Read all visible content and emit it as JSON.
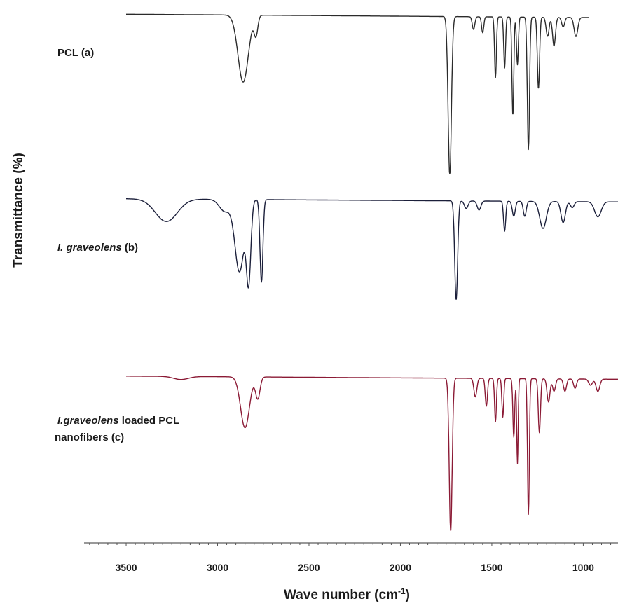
{
  "chart_data": {
    "type": "line",
    "title": "",
    "xlabel": "Wave number (cm",
    "xlabel_sup": "-1",
    "xlabel_close": ")",
    "ylabel": "Transmittance (%)",
    "xlim": [
      3730,
      810
    ],
    "x_reversed": true,
    "x_ticks": [
      3500,
      3000,
      2500,
      2000,
      1500,
      1000
    ],
    "x_tick_labels": [
      "3500",
      "3000",
      "2500",
      "2000",
      "1500",
      "1000"
    ],
    "y_tick_labels": false,
    "grid": false,
    "stacked_offset": true,
    "series": [
      {
        "name": "PCL (a)",
        "label_parts": [
          {
            "text": "PCL (a)",
            "italic": false
          }
        ],
        "color": "#2b2b2b",
        "x_range": [
          3500,
          970
        ],
        "top": 0.985,
        "bottom": 0.0,
        "baseline": 0.965,
        "peaks": [
          {
            "x": 2860,
            "depth": 0.42,
            "width": 28
          },
          {
            "x": 2790,
            "depth": 0.12,
            "width": 10
          },
          {
            "x": 1730,
            "depth": 1.0,
            "width": 9
          },
          {
            "x": 1600,
            "depth": 0.08,
            "width": 7
          },
          {
            "x": 1550,
            "depth": 0.1,
            "width": 6
          },
          {
            "x": 1480,
            "depth": 0.38,
            "width": 5
          },
          {
            "x": 1430,
            "depth": 0.32,
            "width": 5
          },
          {
            "x": 1385,
            "depth": 0.62,
            "width": 5
          },
          {
            "x": 1360,
            "depth": 0.3,
            "width": 5
          },
          {
            "x": 1300,
            "depth": 0.83,
            "width": 6
          },
          {
            "x": 1245,
            "depth": 0.45,
            "width": 6
          },
          {
            "x": 1195,
            "depth": 0.12,
            "width": 8
          },
          {
            "x": 1160,
            "depth": 0.18,
            "width": 8
          },
          {
            "x": 1110,
            "depth": 0.06,
            "width": 8
          },
          {
            "x": 1040,
            "depth": 0.12,
            "width": 10
          }
        ]
      },
      {
        "name": "I. graveolens (b)",
        "label_parts": [
          {
            "text": "I. graveolens",
            "italic": true
          },
          {
            "text": " (b)",
            "italic": false
          }
        ],
        "color": "#1b1f3a",
        "x_range": [
          3500,
          810
        ],
        "top": 0.985,
        "bottom": 0.0,
        "baseline": 0.94,
        "peaks": [
          {
            "x": 3280,
            "depth": 0.15,
            "width": 60
          },
          {
            "x": 2960,
            "depth": 0.08,
            "width": 30
          },
          {
            "x": 2880,
            "depth": 0.48,
            "width": 25
          },
          {
            "x": 2830,
            "depth": 0.52,
            "width": 12
          },
          {
            "x": 2760,
            "depth": 0.55,
            "width": 8
          },
          {
            "x": 1695,
            "depth": 0.66,
            "width": 8
          },
          {
            "x": 1640,
            "depth": 0.05,
            "width": 10
          },
          {
            "x": 1570,
            "depth": 0.06,
            "width": 10
          },
          {
            "x": 1430,
            "depth": 0.2,
            "width": 6
          },
          {
            "x": 1380,
            "depth": 0.1,
            "width": 8
          },
          {
            "x": 1320,
            "depth": 0.1,
            "width": 8
          },
          {
            "x": 1220,
            "depth": 0.18,
            "width": 18
          },
          {
            "x": 1110,
            "depth": 0.14,
            "width": 12
          },
          {
            "x": 1060,
            "depth": 0.04,
            "width": 10
          },
          {
            "x": 920,
            "depth": 0.1,
            "width": 18
          }
        ]
      },
      {
        "name": "I.graveolens loaded PCL nanofibers (c)",
        "label_parts": [
          {
            "text": "I.graveolens",
            "italic": true
          },
          {
            "text": " loaded PCL",
            "italic": false
          }
        ],
        "label_line2": "nanofibers (c)",
        "color": "#8b1a35",
        "x_range": [
          3500,
          810
        ],
        "top": 0.985,
        "bottom": 0.0,
        "baseline": 0.97,
        "peaks": [
          {
            "x": 3200,
            "depth": 0.02,
            "width": 40
          },
          {
            "x": 2850,
            "depth": 0.33,
            "width": 24
          },
          {
            "x": 2780,
            "depth": 0.14,
            "width": 12
          },
          {
            "x": 1725,
            "depth": 1.0,
            "width": 8
          },
          {
            "x": 1590,
            "depth": 0.12,
            "width": 8
          },
          {
            "x": 1530,
            "depth": 0.18,
            "width": 6
          },
          {
            "x": 1480,
            "depth": 0.28,
            "width": 5
          },
          {
            "x": 1440,
            "depth": 0.25,
            "width": 5
          },
          {
            "x": 1380,
            "depth": 0.38,
            "width": 5
          },
          {
            "x": 1360,
            "depth": 0.55,
            "width": 4
          },
          {
            "x": 1300,
            "depth": 0.88,
            "width": 5
          },
          {
            "x": 1240,
            "depth": 0.35,
            "width": 6
          },
          {
            "x": 1190,
            "depth": 0.15,
            "width": 8
          },
          {
            "x": 1160,
            "depth": 0.08,
            "width": 8
          },
          {
            "x": 1100,
            "depth": 0.08,
            "width": 8
          },
          {
            "x": 1045,
            "depth": 0.06,
            "width": 8
          },
          {
            "x": 960,
            "depth": 0.04,
            "width": 10
          },
          {
            "x": 920,
            "depth": 0.08,
            "width": 10
          }
        ]
      }
    ]
  }
}
